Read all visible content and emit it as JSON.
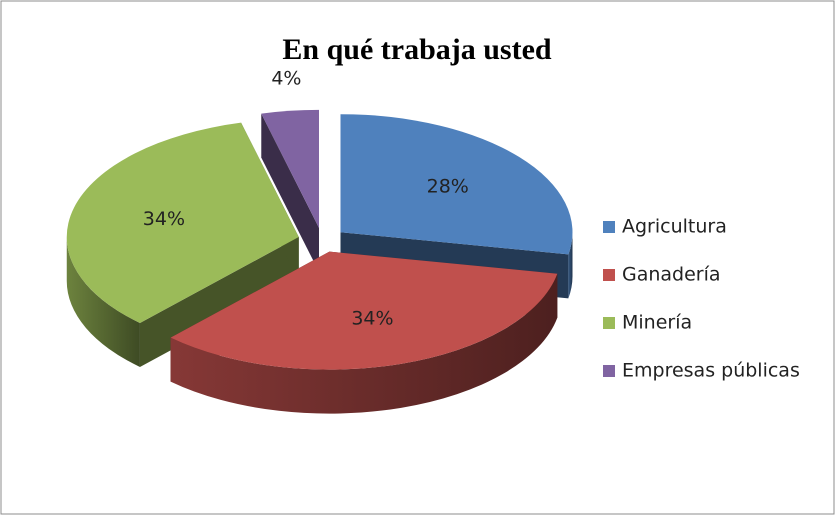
{
  "chart_data": {
    "type": "pie3d",
    "title": "En qué trabaja usted",
    "categories": [
      "Agricultura",
      "Ganadería",
      "Minería",
      "Empresas públicas"
    ],
    "values": [
      28,
      34,
      34,
      4
    ],
    "value_labels": [
      "28%",
      "34%",
      "34%",
      "4%"
    ],
    "colors": [
      "#4f81bd",
      "#c0504d",
      "#9bbb59",
      "#8064a2"
    ],
    "legend": "right"
  }
}
